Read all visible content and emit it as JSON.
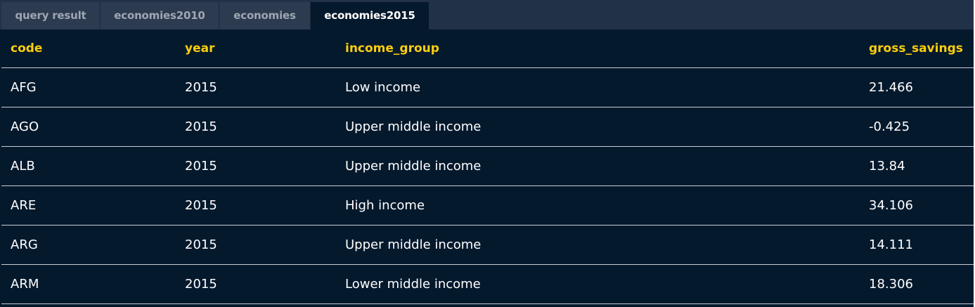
{
  "tabs": [
    {
      "label": "query result",
      "active": false
    },
    {
      "label": "economies2010",
      "active": false
    },
    {
      "label": "economies",
      "active": false
    },
    {
      "label": "economies2015",
      "active": true
    }
  ],
  "table": {
    "columns": [
      "code",
      "year",
      "income_group",
      "gross_savings"
    ],
    "rows": [
      [
        "AFG",
        "2015",
        "Low income",
        "21.466"
      ],
      [
        "AGO",
        "2015",
        "Upper middle income",
        "-0.425"
      ],
      [
        "ALB",
        "2015",
        "Upper middle income",
        "13.84"
      ],
      [
        "ARE",
        "2015",
        "High income",
        "34.106"
      ],
      [
        "ARG",
        "2015",
        "Upper middle income",
        "14.111"
      ],
      [
        "ARM",
        "2015",
        "Lower middle income",
        "18.306"
      ]
    ]
  },
  "colors": {
    "background": "#05192d",
    "tab_bar": "#213147",
    "header_text": "#fcce0d",
    "cell_text": "#ffffff",
    "row_divider": "#c8ced6"
  }
}
